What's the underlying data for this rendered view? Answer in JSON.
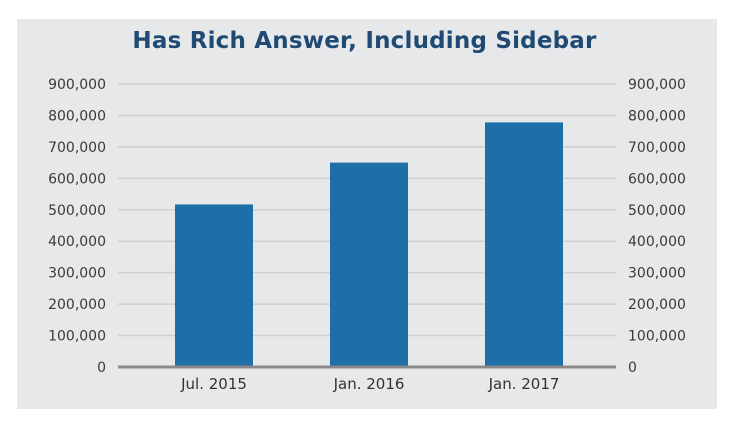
{
  "chart_data": {
    "type": "bar",
    "title": "Has Rich Answer, Including Sidebar",
    "categories": [
      "Jul. 2015",
      "Jan. 2016",
      "Jan. 2017"
    ],
    "values": [
      517000,
      650000,
      778000
    ],
    "ylim": [
      0,
      900000
    ],
    "yticks": [
      0,
      100000,
      200000,
      300000,
      400000,
      500000,
      600000,
      700000,
      800000,
      900000
    ],
    "ytick_labels": [
      "0",
      "100,000",
      "200,000",
      "300,000",
      "400,000",
      "500,000",
      "600,000",
      "700,000",
      "800,000",
      "900,000"
    ],
    "y_axis_both_sides": true,
    "grid": true,
    "xlabel": "",
    "ylabel": "",
    "colors": {
      "bar": "#1e6fa8",
      "grid": "#cfcfcf",
      "baseline": "#8a8a8a",
      "title": "#1f4a73",
      "background": "#e7e8e9"
    }
  }
}
